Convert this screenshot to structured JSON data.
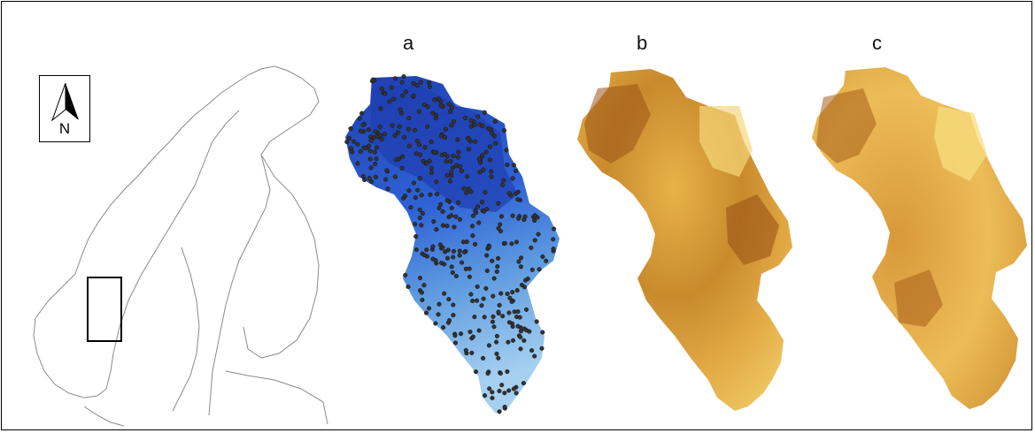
{
  "panels": [
    {
      "id": "a",
      "label": "a",
      "fill": "#2a4fc4"
    },
    {
      "id": "b",
      "label": "b",
      "fill": "#c98a2c"
    },
    {
      "id": "c",
      "label": "c",
      "fill": "#d9a23e"
    }
  ],
  "north_arrow": {
    "letter": "N"
  },
  "colors": {
    "outline": "#8a8a8a",
    "study_box": "#000000",
    "blue_dark": "#1f3fb0",
    "blue_mid": "#2f63d6",
    "blue_light": "#8cc0ea",
    "points": "#333333",
    "brown_dark": "#9a5418",
    "brown_mid": "#c98a2c",
    "brown_light": "#f0cf6a"
  }
}
